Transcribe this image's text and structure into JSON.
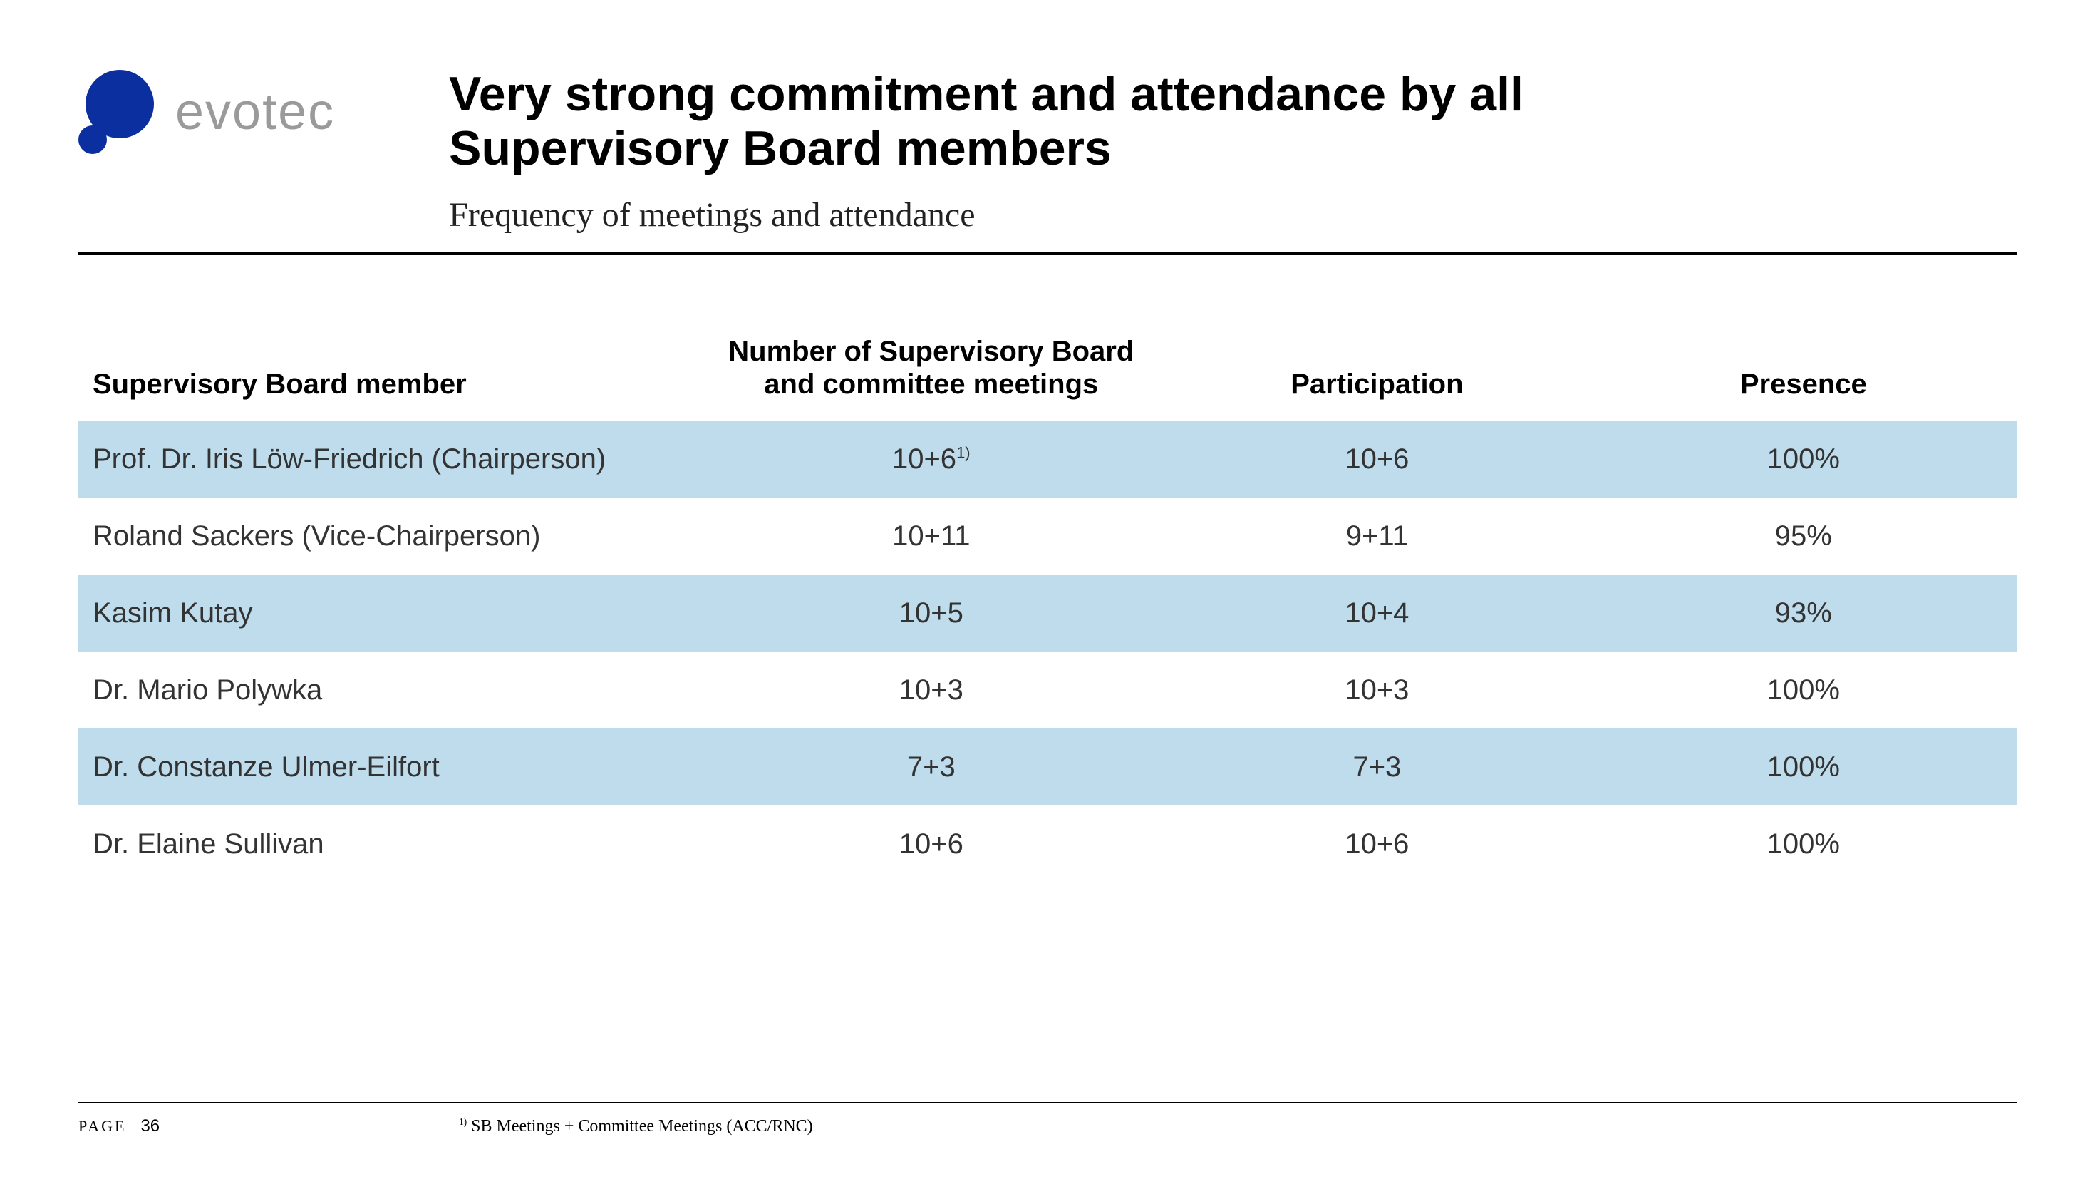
{
  "brand": {
    "name": "evotec",
    "mark_color": "#0b2f9e",
    "text_color": "#9a9a9a"
  },
  "title_line1": "Very strong commitment and attendance by all",
  "title_line2": "Supervisory Board members",
  "subtitle": "Frequency of meetings and attendance",
  "table": {
    "band_color": "#bedceb",
    "text_color": "#333333",
    "header_fontsize_pt": 30,
    "cell_fontsize_pt": 30,
    "columns": [
      {
        "label": "Supervisory Board member",
        "align": "left"
      },
      {
        "label_line1": "Number of Supervisory Board",
        "label_line2": "and committee meetings",
        "align": "center"
      },
      {
        "label": "Participation",
        "align": "center"
      },
      {
        "label": "Presence",
        "align": "center"
      }
    ],
    "rows": [
      {
        "member": "Prof. Dr. Iris Löw-Friedrich (Chairperson)",
        "meetings": "10+6",
        "meetings_note_sup": "1)",
        "participation": "10+6",
        "presence": "100%",
        "band": true
      },
      {
        "member": "Roland Sackers (Vice-Chairperson)",
        "meetings": "10+11",
        "participation": "9+11",
        "presence": "95%",
        "band": false
      },
      {
        "member": "Kasim Kutay",
        "meetings": "10+5",
        "participation": "10+4",
        "presence": "93%",
        "band": true
      },
      {
        "member": "Dr. Mario Polywka",
        "meetings": "10+3",
        "participation": "10+3",
        "presence": "100%",
        "band": false
      },
      {
        "member": "Dr. Constanze Ulmer-Eilfort",
        "meetings": "7+3",
        "participation": "7+3",
        "presence": "100%",
        "band": true
      },
      {
        "member": "Dr. Elaine Sullivan",
        "meetings": "10+6",
        "participation": "10+6",
        "presence": "100%",
        "band": false
      }
    ]
  },
  "footnote": {
    "marker": "1)",
    "text": "SB Meetings + Committee Meetings (ACC/RNC)"
  },
  "page": {
    "label": "PAGE",
    "number": "36"
  }
}
